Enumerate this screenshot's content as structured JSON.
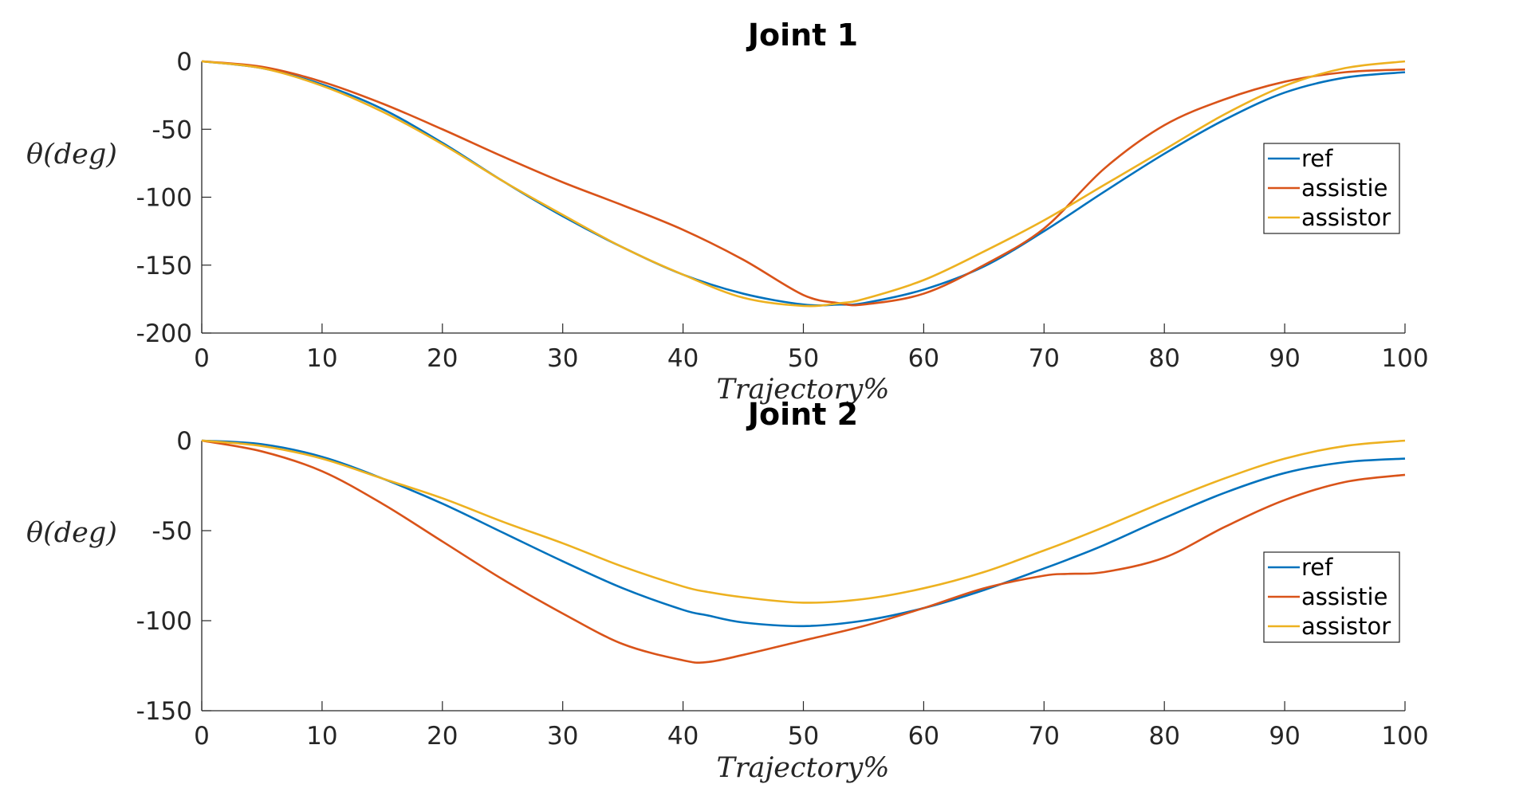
{
  "chart_data": [
    {
      "type": "line",
      "title": "Joint 1",
      "xlabel": "Trajectory%",
      "ylabel": "θ(deg)",
      "xlim": [
        0,
        100
      ],
      "ylim": [
        -200,
        0
      ],
      "xticks": [
        0,
        10,
        20,
        30,
        40,
        50,
        60,
        70,
        80,
        90,
        100
      ],
      "yticks": [
        0,
        -50,
        -100,
        -150,
        -200
      ],
      "legend_position": "right",
      "grid": false,
      "x": [
        0,
        5,
        10,
        15,
        20,
        25,
        30,
        35,
        40,
        45,
        50,
        53,
        55,
        60,
        65,
        70,
        75,
        80,
        85,
        90,
        95,
        100
      ],
      "series": [
        {
          "name": "ref",
          "color": "#0072BD",
          "values": [
            0,
            -5,
            -17,
            -35,
            -60,
            -88,
            -114,
            -137,
            -157,
            -171,
            -179,
            -179,
            -178,
            -168,
            -151,
            -125,
            -96,
            -68,
            -43,
            -23,
            -12,
            -8
          ]
        },
        {
          "name": "assistie",
          "color": "#D95319",
          "values": [
            0,
            -4,
            -15,
            -31,
            -50,
            -70,
            -89,
            -106,
            -124,
            -146,
            -172,
            -178,
            -179,
            -171,
            -150,
            -123,
            -79,
            -47,
            -28,
            -15,
            -8,
            -6
          ]
        },
        {
          "name": "assistor",
          "color": "#EDB120",
          "values": [
            0,
            -5,
            -18,
            -37,
            -61,
            -88,
            -113,
            -137,
            -157,
            -174,
            -180,
            -178,
            -175,
            -161,
            -140,
            -117,
            -91,
            -65,
            -39,
            -18,
            -5,
            0
          ]
        }
      ]
    },
    {
      "type": "line",
      "title": "Joint 2",
      "xlabel": "Trajectory%",
      "ylabel": "θ(deg)",
      "xlim": [
        0,
        100
      ],
      "ylim": [
        -150,
        0
      ],
      "xticks": [
        0,
        10,
        20,
        30,
        40,
        50,
        60,
        70,
        80,
        90,
        100
      ],
      "yticks": [
        0,
        -50,
        -100,
        -150
      ],
      "legend_position": "right",
      "grid": false,
      "x": [
        0,
        5,
        10,
        15,
        20,
        25,
        30,
        35,
        40,
        42,
        45,
        50,
        55,
        60,
        65,
        70,
        72,
        75,
        80,
        85,
        90,
        95,
        100
      ],
      "series": [
        {
          "name": "ref",
          "color": "#0072BD",
          "values": [
            0,
            -2,
            -9,
            -21,
            -35,
            -51,
            -67,
            -82,
            -94,
            -97,
            -101,
            -103,
            -100,
            -93,
            -83,
            -71,
            -66,
            -58,
            -43,
            -29,
            -18,
            -12,
            -10
          ]
        },
        {
          "name": "assistie",
          "color": "#D95319",
          "values": [
            0,
            -6,
            -17,
            -35,
            -56,
            -77,
            -96,
            -113,
            -122,
            -123,
            -119,
            -111,
            -103,
            -93,
            -82,
            -75,
            -74,
            -73,
            -65,
            -48,
            -33,
            -23,
            -19
          ]
        },
        {
          "name": "assistor",
          "color": "#EDB120",
          "values": [
            0,
            -3,
            -10,
            -21,
            -32,
            -45,
            -57,
            -70,
            -81,
            -84,
            -87,
            -90,
            -88,
            -82,
            -73,
            -61,
            -56,
            -48,
            -34,
            -21,
            -10,
            -3,
            0
          ]
        }
      ]
    }
  ]
}
